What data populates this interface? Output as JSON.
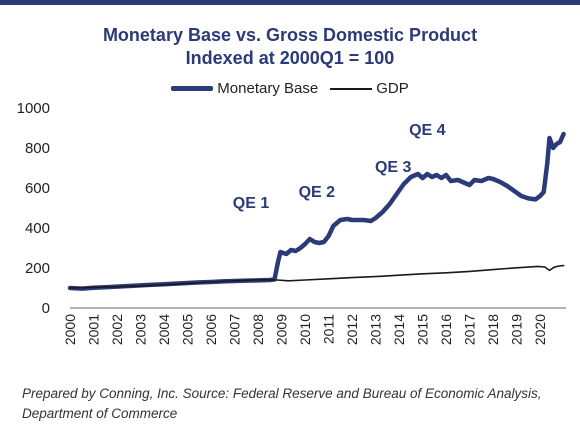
{
  "colors": {
    "accent": "#2b3a78",
    "gdp_line": "#1a1a1a",
    "text": "#222222"
  },
  "chart_data": {
    "type": "line",
    "title": "Monetary Base vs. Gross Domestic Product",
    "subtitle": "Indexed at 2000Q1 = 100",
    "ylim": [
      0,
      1000
    ],
    "yticks": [
      0,
      200,
      400,
      600,
      800,
      1000
    ],
    "xlim": [
      2000,
      2021.1
    ],
    "xticks": [
      "2000",
      "2001",
      "2002",
      "2003",
      "2004",
      "2005",
      "2006",
      "2007",
      "2008",
      "2009",
      "2010",
      "2011",
      "2012",
      "2013",
      "2014",
      "2015",
      "2016",
      "2017",
      "2018",
      "2019",
      "2020"
    ],
    "legend_position": "top-center",
    "grid": false,
    "series": [
      {
        "name": "Monetary Base",
        "points": [
          [
            2000.0,
            100
          ],
          [
            2000.5,
            97
          ],
          [
            2001.0,
            101
          ],
          [
            2001.5,
            104
          ],
          [
            2002.0,
            107
          ],
          [
            2002.5,
            110
          ],
          [
            2003.0,
            113
          ],
          [
            2003.5,
            116
          ],
          [
            2004.0,
            119
          ],
          [
            2004.5,
            122
          ],
          [
            2005.0,
            125
          ],
          [
            2005.5,
            128
          ],
          [
            2006.0,
            130
          ],
          [
            2006.5,
            133
          ],
          [
            2007.0,
            135
          ],
          [
            2007.5,
            137
          ],
          [
            2008.0,
            138
          ],
          [
            2008.5,
            140
          ],
          [
            2008.7,
            143
          ],
          [
            2008.85,
            230
          ],
          [
            2008.95,
            280
          ],
          [
            2009.2,
            270
          ],
          [
            2009.4,
            290
          ],
          [
            2009.6,
            285
          ],
          [
            2009.8,
            300
          ],
          [
            2010.0,
            320
          ],
          [
            2010.2,
            345
          ],
          [
            2010.4,
            330
          ],
          [
            2010.6,
            325
          ],
          [
            2010.8,
            330
          ],
          [
            2011.0,
            360
          ],
          [
            2011.2,
            410
          ],
          [
            2011.5,
            440
          ],
          [
            2011.8,
            445
          ],
          [
            2012.0,
            440
          ],
          [
            2012.5,
            440
          ],
          [
            2012.8,
            435
          ],
          [
            2013.0,
            450
          ],
          [
            2013.3,
            480
          ],
          [
            2013.6,
            520
          ],
          [
            2013.9,
            570
          ],
          [
            2014.2,
            620
          ],
          [
            2014.5,
            655
          ],
          [
            2014.8,
            670
          ],
          [
            2015.0,
            650
          ],
          [
            2015.2,
            670
          ],
          [
            2015.4,
            655
          ],
          [
            2015.6,
            665
          ],
          [
            2015.8,
            650
          ],
          [
            2016.0,
            665
          ],
          [
            2016.2,
            635
          ],
          [
            2016.5,
            640
          ],
          [
            2016.8,
            625
          ],
          [
            2017.0,
            615
          ],
          [
            2017.2,
            640
          ],
          [
            2017.5,
            635
          ],
          [
            2017.8,
            650
          ],
          [
            2018.0,
            645
          ],
          [
            2018.3,
            630
          ],
          [
            2018.6,
            610
          ],
          [
            2018.9,
            585
          ],
          [
            2019.2,
            560
          ],
          [
            2019.5,
            548
          ],
          [
            2019.8,
            543
          ],
          [
            2020.0,
            560
          ],
          [
            2020.15,
            580
          ],
          [
            2020.3,
            720
          ],
          [
            2020.4,
            850
          ],
          [
            2020.55,
            800
          ],
          [
            2020.7,
            820
          ],
          [
            2020.85,
            830
          ],
          [
            2021.0,
            870
          ]
        ]
      },
      {
        "name": "GDP",
        "points": [
          [
            2000.0,
            100
          ],
          [
            2001.0,
            103
          ],
          [
            2002.0,
            106
          ],
          [
            2003.0,
            110
          ],
          [
            2004.0,
            116
          ],
          [
            2005.0,
            123
          ],
          [
            2006.0,
            130
          ],
          [
            2007.0,
            136
          ],
          [
            2008.0,
            141
          ],
          [
            2008.8,
            140
          ],
          [
            2009.3,
            136
          ],
          [
            2010.0,
            140
          ],
          [
            2011.0,
            146
          ],
          [
            2012.0,
            152
          ],
          [
            2013.0,
            157
          ],
          [
            2014.0,
            164
          ],
          [
            2015.0,
            171
          ],
          [
            2016.0,
            176
          ],
          [
            2017.0,
            183
          ],
          [
            2018.0,
            192
          ],
          [
            2019.0,
            201
          ],
          [
            2019.9,
            208
          ],
          [
            2020.2,
            205
          ],
          [
            2020.4,
            188
          ],
          [
            2020.6,
            204
          ],
          [
            2020.8,
            210
          ],
          [
            2021.0,
            212
          ]
        ]
      }
    ],
    "annotations": [
      {
        "text": "QE 1",
        "x": 2007.7,
        "y": 500
      },
      {
        "text": "QE 2",
        "x": 2010.5,
        "y": 555
      },
      {
        "text": "QE 3",
        "x": 2013.75,
        "y": 680
      },
      {
        "text": "QE 4",
        "x": 2015.2,
        "y": 865
      }
    ]
  },
  "source": "Prepared by Conning, Inc. Source: Federal Reserve and Bureau of Economic Analysis, Department of Commerce"
}
